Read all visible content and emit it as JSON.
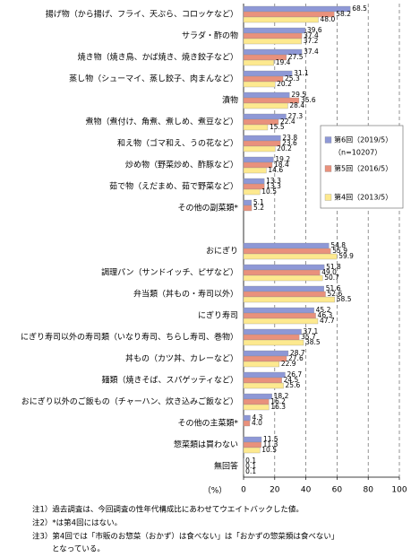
{
  "chart_data": {
    "type": "bar",
    "orientation": "horizontal",
    "categories": [
      "揚げ物（から揚げ、フライ、天ぷら、コロッケなど）",
      "サラダ・酢の物",
      "焼き物（焼き鳥、かば焼き、焼き餃子など）",
      "蒸し物（シューマイ、蒸し餃子、肉まんなど）",
      "漬物",
      "煮物（煮付け、角煮、煮しめ、煮豆など）",
      "和え物（ゴマ和え、うの花など）",
      "炒め物（野菜炒め、酢豚など）",
      "茹で物（えだまめ、茹で野菜など）",
      "その他の副菜類*",
      null,
      "おにぎり",
      "調理パン（サンドイッチ、ピザなど）",
      "弁当類（丼もの・寿司以外）",
      "にぎり寿司",
      "にぎり寿司以外の寿司類（いなり寿司、ちらし寿司、巻物）",
      "丼もの（カツ丼、カレーなど）",
      "麺類（焼きそば、スパゲッティなど）",
      "おにぎり以外のご飯もの（チャーハン、炊き込みご飯など）",
      "その他の主菜類*",
      "惣菜類は買わない",
      "無回答"
    ],
    "series": [
      {
        "name": "第6回（2019/5）",
        "color": "#8e98d6",
        "values": [
          68.5,
          39.6,
          37.4,
          31.1,
          29.5,
          27.3,
          23.8,
          19.2,
          13.3,
          5.1,
          null,
          54.8,
          51.8,
          51.6,
          45.2,
          37.1,
          28.7,
          26.7,
          18.2,
          4.3,
          11.5,
          0.1
        ],
        "value_labels": [
          "68.5",
          "39.6",
          "37.4",
          "31.1",
          "29.5",
          "27.3",
          "23.8",
          "19.2",
          "13.3",
          "5.1",
          null,
          "54.8",
          "51.8",
          "51.6",
          "45.2",
          "37.1",
          "28.7",
          "26.7",
          "18.2",
          "4.3",
          "11.5",
          "0.1"
        ]
      },
      {
        "name": "第5回（2016/5）",
        "color": "#e9917c",
        "values": [
          58.2,
          37.4,
          27.5,
          25.3,
          35.6,
          22.4,
          23.6,
          18.4,
          13.3,
          5.2,
          null,
          55.9,
          49.0,
          52.6,
          46.3,
          35.7,
          27.6,
          24.5,
          16.2,
          4.0,
          11.3,
          0.1
        ],
        "value_labels": [
          "58.2",
          "37.4",
          "27.5",
          "25.3",
          "35.6",
          "22.4",
          "23.6",
          "18.4",
          "13.3",
          "5.2",
          null,
          "55.9",
          "49.0",
          "52.6",
          "46.3",
          "35.7",
          "27.6",
          "24.5",
          "16.2",
          "4.0",
          "11.3",
          "0.1"
        ]
      },
      {
        "name": "第4回（2013/5）",
        "color": "#fde98f",
        "values": [
          48.0,
          37.2,
          19.4,
          20.2,
          28.4,
          15.5,
          20.2,
          14.6,
          10.5,
          null,
          null,
          59.9,
          50.7,
          58.5,
          47.7,
          38.5,
          22.9,
          25.6,
          16.3,
          null,
          10.5,
          0.1
        ],
        "value_labels": [
          "48.0",
          "37.2",
          "19.4",
          "20.2",
          "28.4",
          "15.5",
          "20.2",
          "14.6",
          "10.5",
          null,
          null,
          "59.9",
          "50.7",
          "58.5",
          "47.7",
          "38.5",
          "22.9",
          "25.6",
          "16.3",
          null,
          "10.5",
          "0.1"
        ]
      }
    ],
    "sample_size_label": "（n=10207）",
    "xlim": [
      0,
      100
    ],
    "xticks": [
      0,
      20,
      40,
      60,
      80,
      100
    ],
    "x_axis_unit": "（%）",
    "grid": true,
    "legend_position": "right",
    "notes": [
      "注1）過去調査は、今回調査の性年代構成比にあわせてウエイトバックした値。",
      "注2）*は第4回にはない。",
      "注3）第4回では「市販のお惣菜（おかず）は食べない」は「おかずの惣菜類は食べない」",
      "となっている。"
    ]
  }
}
